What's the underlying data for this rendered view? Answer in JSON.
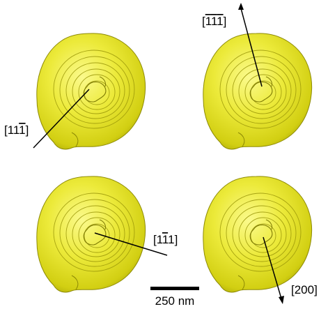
{
  "figure": {
    "labels": {
      "p1": {
        "open": "[11",
        "bar": "1",
        "close": "]"
      },
      "p2": {
        "open": "[",
        "b1": "1",
        "b2": "1",
        "b3": "1",
        "close": "]"
      },
      "p3": {
        "open": "[1",
        "bar": "1",
        "close": "1]"
      },
      "p4": {
        "text": "[200]"
      }
    },
    "scale_bar": {
      "label": "250 nm"
    },
    "colors": {
      "particle_fill": "#e3e01e",
      "particle_edge": "#8d8a05",
      "ring": "#9a9608",
      "axis": "#000000"
    }
  }
}
